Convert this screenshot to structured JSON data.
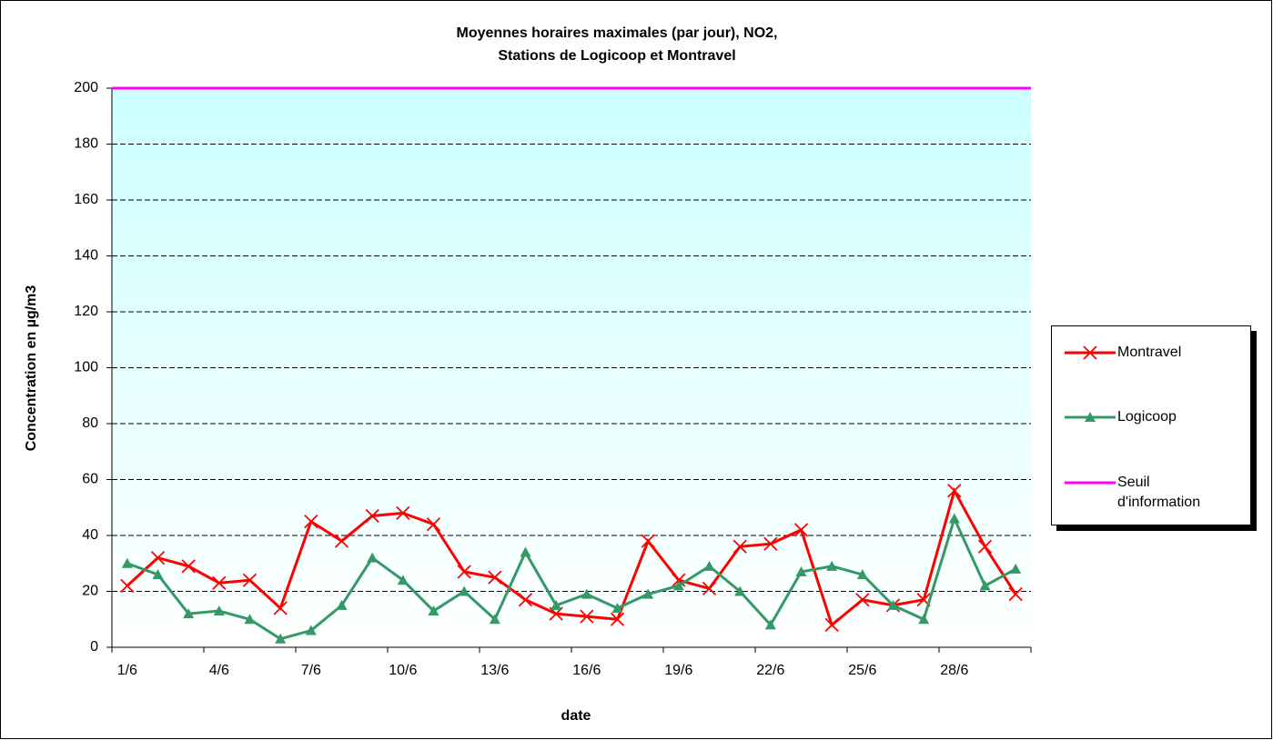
{
  "chart_data": {
    "type": "line",
    "title": [
      "Moyennes horaires maximales (par jour), NO2,",
      "Stations de Logicoop et Montravel"
    ],
    "x_label": "date",
    "y_label": "Concentration en µg/m3",
    "categories": [
      "1/6",
      null,
      null,
      "4/6",
      null,
      null,
      "7/6",
      null,
      null,
      "10/6",
      null,
      null,
      "13/6",
      null,
      null,
      "16/6",
      null,
      null,
      "19/6",
      null,
      null,
      "22/6",
      null,
      null,
      "25/6",
      null,
      null,
      "28/6",
      null,
      null
    ],
    "series": [
      {
        "name": "Montravel",
        "color": "#ff0000",
        "marker": "x",
        "values": [
          22,
          32,
          29,
          23,
          24,
          14,
          45,
          38,
          47,
          48,
          44,
          27,
          25,
          17,
          12,
          11,
          10,
          38,
          24,
          21,
          36,
          37,
          42,
          8,
          17,
          15,
          17,
          56,
          36,
          19
        ]
      },
      {
        "name": "Logicoop",
        "color": "#339966",
        "marker": "triangle",
        "values": [
          30,
          26,
          12,
          13,
          10,
          3,
          6,
          15,
          32,
          24,
          13,
          20,
          10,
          34,
          15,
          19,
          14,
          19,
          22,
          29,
          20,
          8,
          27,
          29,
          26,
          15,
          10,
          46,
          22,
          28
        ]
      }
    ],
    "threshold": {
      "name": "Seuil d'information",
      "value": 200,
      "color": "#ff00ff"
    },
    "ylim": [
      0,
      200
    ],
    "yticks": [
      0,
      20,
      40,
      60,
      80,
      100,
      120,
      140,
      160,
      180,
      200
    ],
    "grid": true,
    "legend": "right"
  }
}
